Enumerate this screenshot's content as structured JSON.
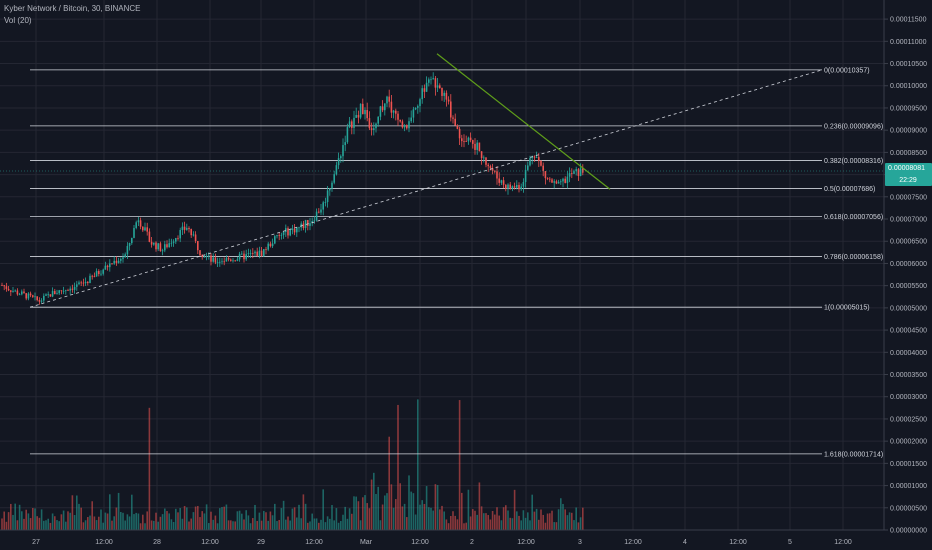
{
  "header": {
    "symbol_line": "Kyber Network / Bitcoin, 30, BINANCE",
    "volume_line": "Vol (20)"
  },
  "colors": {
    "background": "#131722",
    "up": "#26a69a",
    "down": "#ef5350",
    "grid": "#242733",
    "fib_line": "#d1d4dc",
    "trendline": "#5f9e1a",
    "price_tag": "#26a69a"
  },
  "price_tag": {
    "value": "0.00008081",
    "countdown": "22:29",
    "price": 8.081e-05
  },
  "chart_data": {
    "type": "candlestick",
    "title": "",
    "ylim": [
      0.0,
      0.0001175
    ],
    "y_ticks": [
      "0.00011500",
      "0.00011000",
      "0.00010500",
      "0.00010000",
      "0.00009500",
      "0.00009000",
      "0.00008500",
      "0.00008000",
      "0.00007500",
      "0.00007000",
      "0.00006500",
      "0.00006000",
      "0.00005500",
      "0.00005000",
      "0.00004500",
      "0.00004000",
      "0.00003500",
      "0.00003000",
      "0.00002500",
      "0.00002000",
      "0.00001500",
      "0.00001000",
      "0.00000500",
      "0.00000000"
    ],
    "x_ticks": [
      "27",
      "12:00",
      "28",
      "12:00",
      "29",
      "12:00",
      "Mar",
      "12:00",
      "2",
      "12:00",
      "3",
      "12:00",
      "4",
      "12:00",
      "5",
      "12:00"
    ],
    "price_path": [
      5.51e-05,
      5.37e-05,
      5.27e-05,
      5.15e-05,
      5.32e-05,
      5.41e-05,
      5.49e-05,
      5.62e-05,
      5.84e-05,
      6.03e-05,
      6.19e-05,
      7.05e-05,
      6.48e-05,
      6.31e-05,
      6.6e-05,
      6.83e-05,
      6.28e-05,
      6.05e-05,
      6.08e-05,
      6.12e-05,
      6.19e-05,
      6.24e-05,
      6.53e-05,
      6.71e-05,
      6.8e-05,
      6.96e-05,
      7.33e-05,
      8.12e-05,
      9.04e-05,
      9.49e-05,
      9.05e-05,
      9.7e-05,
      9.23e-05,
      9.1e-05,
      9.95e-05,
      0.000101,
      9.65e-05,
      8.9e-05,
      8.78e-05,
      8.4e-05,
      7.95e-05,
      7.7e-05,
      7.77e-05,
      8.55e-05,
      7.93e-05,
      7.72e-05,
      8e-05,
      8.08e-05
    ],
    "fibonacci": [
      {
        "ratio": 0,
        "price": 0.00010357,
        "label": "0(0.00010357)"
      },
      {
        "ratio": 0.236,
        "price": 9.096e-05,
        "label": "0.236(0.00009096)"
      },
      {
        "ratio": 0.382,
        "price": 8.316e-05,
        "label": "0.382(0.00008316)"
      },
      {
        "ratio": 0.5,
        "price": 7.686e-05,
        "label": "0.5(0.00007686)"
      },
      {
        "ratio": 0.618,
        "price": 7.056e-05,
        "label": "0.618(0.00007056)"
      },
      {
        "ratio": 0.786,
        "price": 6.158e-05,
        "label": "0.786(0.00006158)"
      },
      {
        "ratio": 1,
        "price": 5.015e-05,
        "label": "1(0.00005015)"
      },
      {
        "ratio": 1.618,
        "price": 1.714e-05,
        "label": "1.618(0.00001714)"
      }
    ],
    "volume_spikes": [
      2.75e-05,
      2.1e-05,
      2.94e-05,
      2.6e-05,
      2.3e-05
    ]
  }
}
